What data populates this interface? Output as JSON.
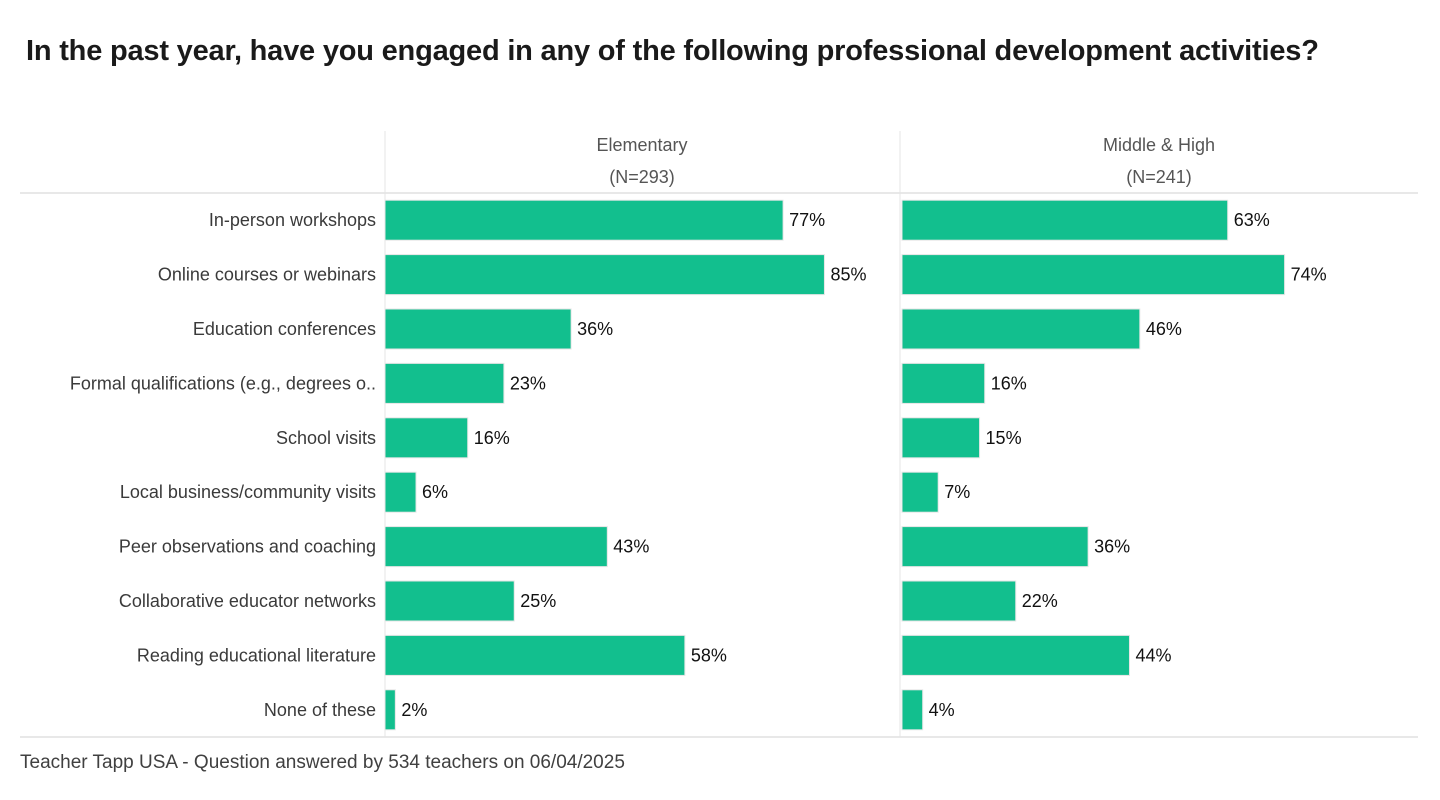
{
  "title": "In the past year, have you engaged in any of the following professional development activities?",
  "footer": "Teacher Tapp USA - Question answered by 534 teachers on 06/04/2025",
  "colors": {
    "bar": "#12BF8E",
    "bar_edge": "#e6e6e6",
    "axis": "#d0d0d0"
  },
  "chart_data": {
    "type": "bar",
    "orientation": "horizontal",
    "title": "In the past year, have you engaged in any of the following professional development activities?",
    "categories": [
      "In-person workshops",
      "Online courses or webinars",
      "Education conferences",
      "Formal qualifications (e.g., degrees o..",
      "School visits",
      "Local business/community visits",
      "Peer observations and coaching",
      "Collaborative educator networks",
      "Reading educational literature",
      "None of these"
    ],
    "panels": [
      {
        "name": "Elementary",
        "subtitle": "(N=293)",
        "values": [
          77,
          85,
          36,
          23,
          16,
          6,
          43,
          25,
          58,
          2
        ]
      },
      {
        "name": "Middle & High",
        "subtitle": "(N=241)",
        "values": [
          63,
          74,
          46,
          16,
          15,
          7,
          36,
          22,
          44,
          4
        ]
      }
    ],
    "value_suffix": "%",
    "xlim": [
      0,
      100
    ],
    "grid": false,
    "legend": "none"
  }
}
